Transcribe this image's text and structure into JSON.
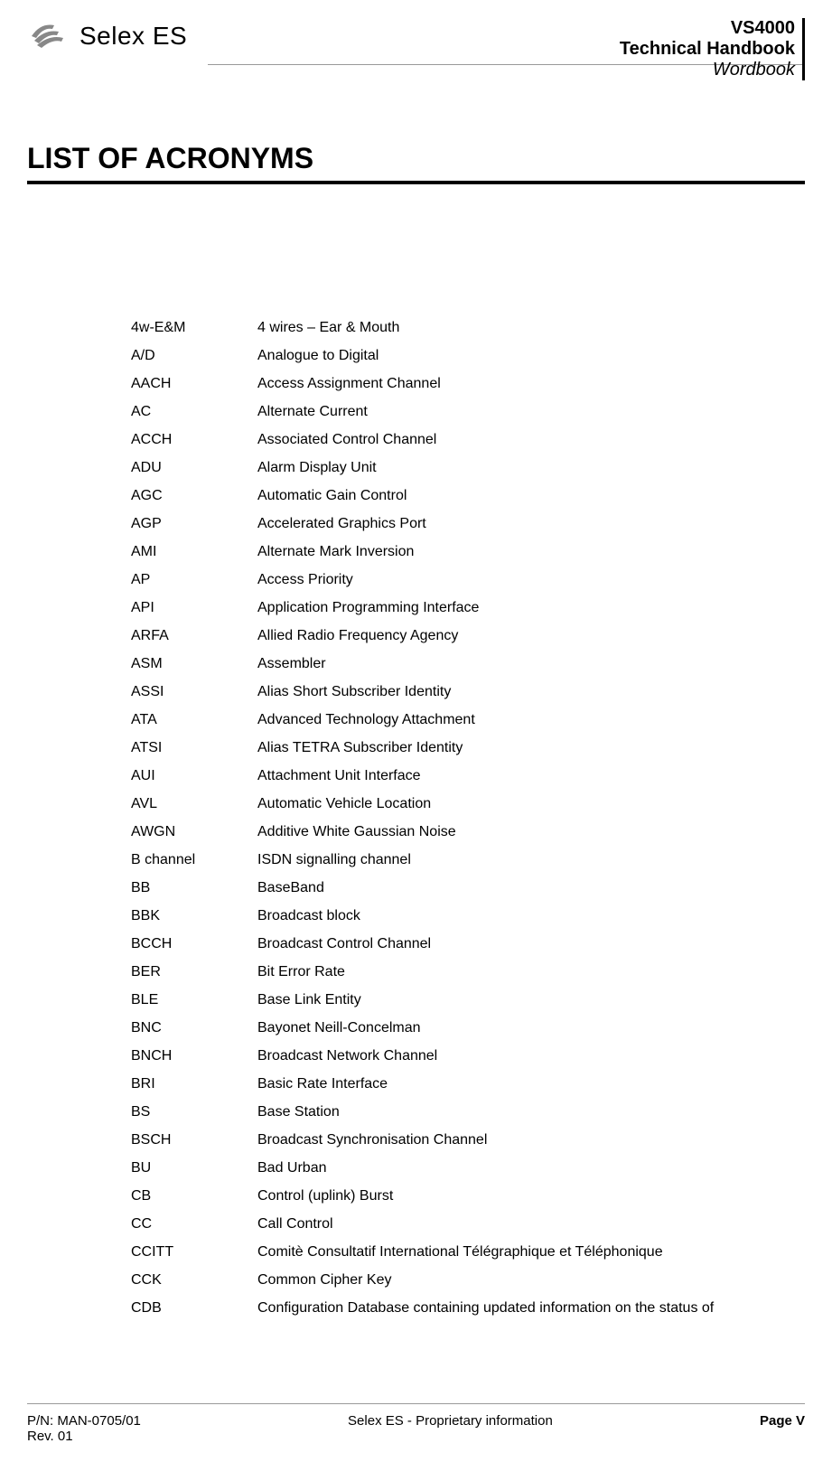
{
  "header": {
    "logo_text": "Selex ES",
    "product": "VS4000",
    "doc_type": "Technical Handbook",
    "section": "Wordbook"
  },
  "title": "LIST OF ACRONYMS",
  "acronyms": [
    {
      "term": "4w-E&M",
      "def": "4 wires – Ear & Mouth"
    },
    {
      "term": "A/D",
      "def": "Analogue to Digital"
    },
    {
      "term": "AACH",
      "def": "Access Assignment Channel"
    },
    {
      "term": "AC",
      "def": "Alternate Current"
    },
    {
      "term": "ACCH",
      "def": "Associated Control Channel"
    },
    {
      "term": "ADU",
      "def": "Alarm Display Unit"
    },
    {
      "term": "AGC",
      "def": "Automatic Gain Control"
    },
    {
      "term": "AGP",
      "def": "Accelerated Graphics Port"
    },
    {
      "term": "AMI",
      "def": "Alternate Mark Inversion"
    },
    {
      "term": "AP",
      "def": "Access Priority"
    },
    {
      "term": "API",
      "def": "Application Programming Interface"
    },
    {
      "term": "ARFA",
      "def": "Allied Radio Frequency Agency"
    },
    {
      "term": "ASM",
      "def": "Assembler"
    },
    {
      "term": "ASSI",
      "def": "Alias Short Subscriber Identity"
    },
    {
      "term": "ATA",
      "def": "Advanced Technology Attachment"
    },
    {
      "term": "ATSI",
      "def": "Alias TETRA Subscriber Identity"
    },
    {
      "term": "AUI",
      "def": "Attachment Unit Interface"
    },
    {
      "term": "AVL",
      "def": "Automatic Vehicle Location"
    },
    {
      "term": "AWGN",
      "def": "Additive White Gaussian Noise"
    },
    {
      "term": "B channel",
      "def": "ISDN signalling channel"
    },
    {
      "term": "BB",
      "def": "BaseBand"
    },
    {
      "term": "BBK",
      "def": "Broadcast block"
    },
    {
      "term": "BCCH",
      "def": "Broadcast Control Channel"
    },
    {
      "term": "BER",
      "def": "Bit Error Rate"
    },
    {
      "term": "BLE",
      "def": "Base Link Entity"
    },
    {
      "term": "BNC",
      "def": "Bayonet Neill-Concelman"
    },
    {
      "term": "BNCH",
      "def": "Broadcast Network Channel"
    },
    {
      "term": "BRI",
      "def": "Basic Rate Interface"
    },
    {
      "term": "BS",
      "def": "Base Station"
    },
    {
      "term": "BSCH",
      "def": "Broadcast Synchronisation Channel"
    },
    {
      "term": "BU",
      "def": "Bad Urban"
    },
    {
      "term": "CB",
      "def": "Control (uplink) Burst"
    },
    {
      "term": "CC",
      "def": "Call Control"
    },
    {
      "term": "CCITT",
      "def": "Comitè Consultatif International Télégraphique et Téléphonique"
    },
    {
      "term": "CCK",
      "def": "Common Cipher Key"
    },
    {
      "term": "CDB",
      "def": "Configuration Database containing updated information on the status of"
    }
  ],
  "footer": {
    "pn": "P/N: MAN-0705/01",
    "rev": "Rev. 01",
    "center": "Selex ES - Proprietary information",
    "page": "Page V"
  }
}
